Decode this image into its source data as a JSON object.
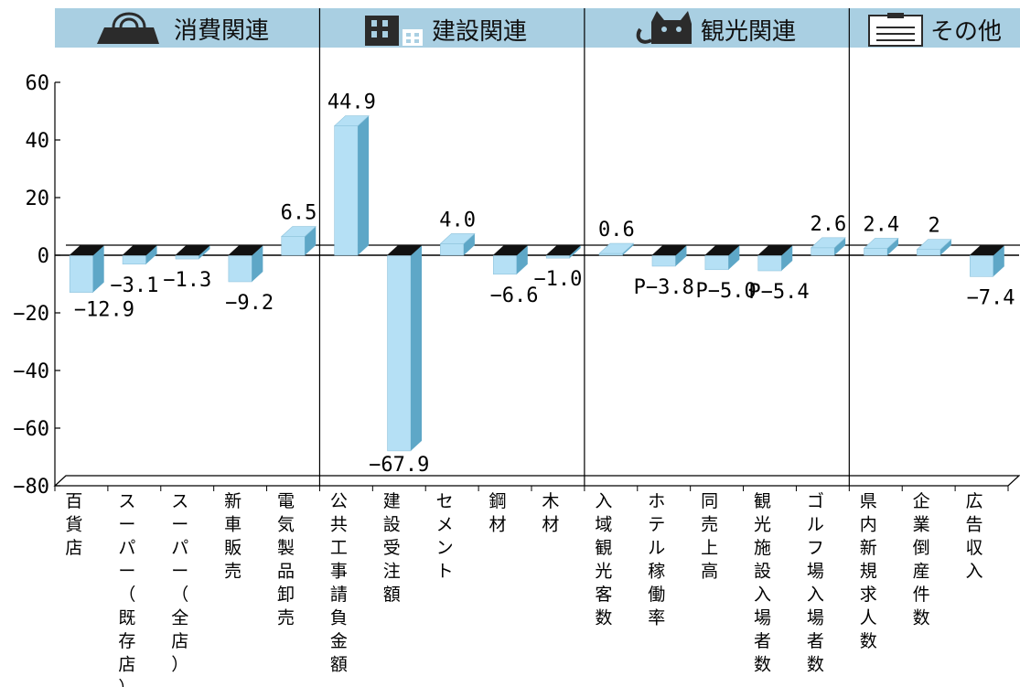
{
  "panels": [
    {
      "title": "消費関連",
      "icon": "shopping-bag-icon"
    },
    {
      "title": "建設関連",
      "icon": "building-icon"
    },
    {
      "title": "観光関連",
      "icon": "cat-icon"
    },
    {
      "title": "その他",
      "icon": "document-icon"
    }
  ],
  "colors": {
    "header_band": "#a9cfe2",
    "bar_front": "#b5e0f5",
    "bar_side": "#5ea7c7",
    "bar_top": "#111111",
    "axis": "#000000"
  },
  "chart_data": {
    "type": "bar",
    "ylim": [
      -80,
      60
    ],
    "yticks": [
      60,
      40,
      20,
      0,
      -20,
      -40,
      -60,
      -80
    ],
    "ytick_labels": [
      "60",
      "40",
      "20",
      "0",
      "−20",
      "−40",
      "−60",
      "−80"
    ],
    "categories": [
      "百貨店",
      "スーパー（既存店）",
      "スーパー（全店）",
      "新車販売",
      "電気製品卸売",
      "公共工事請負金額",
      "建設受注額",
      "セメント",
      "鋼材",
      "木材",
      "入域観光客数",
      "ホテル稼働率",
      "同売上高",
      "観光施設入場者数",
      "ゴルフ場入場者数",
      "県内新規求人数",
      "企業倒産件数",
      "広告収入"
    ],
    "values": [
      -12.9,
      -3.1,
      -1.3,
      -9.2,
      6.5,
      44.9,
      -67.9,
      4.0,
      -6.6,
      -1.0,
      0.6,
      -3.8,
      -5.0,
      -5.4,
      2.6,
      2.4,
      2,
      -7.4
    ],
    "labels": [
      "−12.9",
      "−3.1",
      "−1.3",
      "−9.2",
      "6.5",
      "44.9",
      "−67.9",
      "4.0",
      "−6.6",
      "−1.0",
      "0.6",
      "P−3.8",
      "P−5.0",
      "P−5.4",
      "2.6",
      "2.4",
      "2",
      "−7.4"
    ],
    "groups": [
      {
        "name": "消費関連",
        "count": 5
      },
      {
        "name": "建設関連",
        "count": 5
      },
      {
        "name": "観光関連",
        "count": 5
      },
      {
        "name": "その他",
        "count": 3
      }
    ],
    "grid": false,
    "legend": "none"
  }
}
